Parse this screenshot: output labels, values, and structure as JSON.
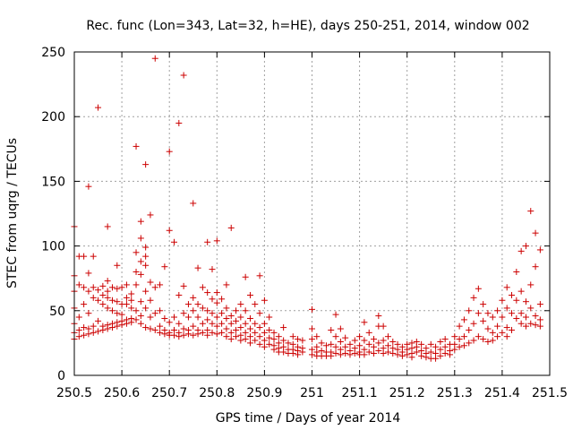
{
  "chart_data": {
    "type": "scatter",
    "title": "Rec. func (Lon=343, Lat=32, h=HE), days 250-251, 2014, window 002",
    "xlabel": "GPS time / Days of year 2014",
    "ylabel": "STEC from uqrg / TECUs",
    "xlim": [
      250.5,
      251.5
    ],
    "ylim": [
      0,
      250
    ],
    "x_ticks": [
      250.5,
      250.6,
      250.7,
      250.8,
      250.9,
      251,
      251.1,
      251.2,
      251.3,
      251.4,
      251.5
    ],
    "x_tick_labels": [
      "250.5",
      "250.6",
      "250.7",
      "250.8",
      "250.9",
      "251",
      "251.1",
      "251.2",
      "251.3",
      "251.4",
      "251.5"
    ],
    "y_ticks": [
      0,
      50,
      100,
      150,
      200,
      250
    ],
    "y_tick_labels": [
      "0",
      "50",
      "100",
      "150",
      "200",
      "250"
    ],
    "grid": true,
    "marker": "+",
    "color": "#cc0000",
    "points": [
      [
        250.5,
        115
      ],
      [
        250.5,
        77
      ],
      [
        250.5,
        65
      ],
      [
        250.5,
        52
      ],
      [
        250.5,
        40
      ],
      [
        250.5,
        33
      ],
      [
        250.5,
        28
      ],
      [
        250.51,
        92
      ],
      [
        250.51,
        70
      ],
      [
        250.51,
        45
      ],
      [
        250.51,
        35
      ],
      [
        250.51,
        30
      ],
      [
        250.52,
        92
      ],
      [
        250.52,
        68
      ],
      [
        250.52,
        55
      ],
      [
        250.52,
        37
      ],
      [
        250.52,
        31
      ],
      [
        250.53,
        146
      ],
      [
        250.53,
        79
      ],
      [
        250.53,
        65
      ],
      [
        250.53,
        48
      ],
      [
        250.53,
        36
      ],
      [
        250.53,
        32
      ],
      [
        250.54,
        92
      ],
      [
        250.54,
        68
      ],
      [
        250.54,
        60
      ],
      [
        250.54,
        38
      ],
      [
        250.54,
        33
      ],
      [
        250.55,
        207
      ],
      [
        250.55,
        66
      ],
      [
        250.55,
        58
      ],
      [
        250.55,
        42
      ],
      [
        250.55,
        34
      ],
      [
        250.56,
        69
      ],
      [
        250.56,
        62
      ],
      [
        250.56,
        55
      ],
      [
        250.56,
        38
      ],
      [
        250.56,
        35
      ],
      [
        250.57,
        115
      ],
      [
        250.57,
        73
      ],
      [
        250.57,
        65
      ],
      [
        250.57,
        60
      ],
      [
        250.57,
        52
      ],
      [
        250.57,
        39
      ],
      [
        250.57,
        36
      ],
      [
        250.58,
        68
      ],
      [
        250.58,
        58
      ],
      [
        250.58,
        50
      ],
      [
        250.58,
        40
      ],
      [
        250.58,
        37
      ],
      [
        250.59,
        85
      ],
      [
        250.59,
        67
      ],
      [
        250.59,
        57
      ],
      [
        250.59,
        48
      ],
      [
        250.59,
        41
      ],
      [
        250.59,
        38
      ],
      [
        250.6,
        68
      ],
      [
        250.6,
        55
      ],
      [
        250.6,
        47
      ],
      [
        250.6,
        42
      ],
      [
        250.6,
        39
      ],
      [
        250.61,
        70
      ],
      [
        250.61,
        60
      ],
      [
        250.61,
        55
      ],
      [
        250.61,
        43
      ],
      [
        250.61,
        40
      ],
      [
        250.62,
        63
      ],
      [
        250.62,
        58
      ],
      [
        250.62,
        52
      ],
      [
        250.62,
        44
      ],
      [
        250.62,
        41
      ],
      [
        250.63,
        177
      ],
      [
        250.63,
        95
      ],
      [
        250.63,
        80
      ],
      [
        250.63,
        70
      ],
      [
        250.63,
        50
      ],
      [
        250.63,
        43
      ],
      [
        250.64,
        119
      ],
      [
        250.64,
        106
      ],
      [
        250.64,
        88
      ],
      [
        250.64,
        78
      ],
      [
        250.64,
        57
      ],
      [
        250.64,
        46
      ],
      [
        250.64,
        40
      ],
      [
        250.65,
        163
      ],
      [
        250.65,
        99
      ],
      [
        250.65,
        92
      ],
      [
        250.65,
        85
      ],
      [
        250.65,
        65
      ],
      [
        250.65,
        52
      ],
      [
        250.65,
        37
      ],
      [
        250.66,
        124
      ],
      [
        250.66,
        72
      ],
      [
        250.66,
        58
      ],
      [
        250.66,
        45
      ],
      [
        250.66,
        36
      ],
      [
        250.67,
        245
      ],
      [
        250.67,
        68
      ],
      [
        250.67,
        48
      ],
      [
        250.67,
        35
      ],
      [
        250.68,
        70
      ],
      [
        250.68,
        50
      ],
      [
        250.68,
        38
      ],
      [
        250.68,
        33
      ],
      [
        250.69,
        84
      ],
      [
        250.69,
        44
      ],
      [
        250.69,
        35
      ],
      [
        250.69,
        32
      ],
      [
        250.7,
        173
      ],
      [
        250.7,
        112
      ],
      [
        250.7,
        41
      ],
      [
        250.7,
        33
      ],
      [
        250.7,
        31
      ],
      [
        250.71,
        103
      ],
      [
        250.71,
        45
      ],
      [
        250.71,
        35
      ],
      [
        250.71,
        31
      ],
      [
        250.72,
        195
      ],
      [
        250.72,
        62
      ],
      [
        250.72,
        40
      ],
      [
        250.72,
        33
      ],
      [
        250.72,
        30
      ],
      [
        250.73,
        232
      ],
      [
        250.73,
        69
      ],
      [
        250.73,
        48
      ],
      [
        250.73,
        36
      ],
      [
        250.73,
        31
      ],
      [
        250.74,
        55
      ],
      [
        250.74,
        45
      ],
      [
        250.74,
        35
      ],
      [
        250.74,
        32
      ],
      [
        250.75,
        133
      ],
      [
        250.75,
        60
      ],
      [
        250.75,
        50
      ],
      [
        250.75,
        38
      ],
      [
        250.75,
        31
      ],
      [
        250.76,
        83
      ],
      [
        250.76,
        55
      ],
      [
        250.76,
        45
      ],
      [
        250.76,
        35
      ],
      [
        250.76,
        32
      ],
      [
        250.77,
        68
      ],
      [
        250.77,
        52
      ],
      [
        250.77,
        40
      ],
      [
        250.77,
        33
      ],
      [
        250.78,
        103
      ],
      [
        250.78,
        64
      ],
      [
        250.78,
        50
      ],
      [
        250.78,
        43
      ],
      [
        250.78,
        35
      ],
      [
        250.78,
        31
      ],
      [
        250.79,
        82
      ],
      [
        250.79,
        59
      ],
      [
        250.79,
        48
      ],
      [
        250.79,
        40
      ],
      [
        250.79,
        33
      ],
      [
        250.8,
        104
      ],
      [
        250.8,
        64
      ],
      [
        250.8,
        56
      ],
      [
        250.8,
        45
      ],
      [
        250.8,
        38
      ],
      [
        250.8,
        32
      ],
      [
        250.81,
        59
      ],
      [
        250.81,
        48
      ],
      [
        250.81,
        40
      ],
      [
        250.81,
        33
      ],
      [
        250.82,
        70
      ],
      [
        250.82,
        52
      ],
      [
        250.82,
        44
      ],
      [
        250.82,
        36
      ],
      [
        250.82,
        30
      ],
      [
        250.83,
        114
      ],
      [
        250.83,
        46
      ],
      [
        250.83,
        40
      ],
      [
        250.83,
        33
      ],
      [
        250.83,
        28
      ],
      [
        250.84,
        50
      ],
      [
        250.84,
        42
      ],
      [
        250.84,
        35
      ],
      [
        250.84,
        30
      ],
      [
        250.85,
        55
      ],
      [
        250.85,
        45
      ],
      [
        250.85,
        37
      ],
      [
        250.85,
        31
      ],
      [
        250.85,
        27
      ],
      [
        250.86,
        76
      ],
      [
        250.86,
        50
      ],
      [
        250.86,
        40
      ],
      [
        250.86,
        33
      ],
      [
        250.86,
        28
      ],
      [
        250.87,
        62
      ],
      [
        250.87,
        44
      ],
      [
        250.87,
        36
      ],
      [
        250.87,
        30
      ],
      [
        250.87,
        25
      ],
      [
        250.88,
        55
      ],
      [
        250.88,
        40
      ],
      [
        250.88,
        33
      ],
      [
        250.88,
        27
      ],
      [
        250.89,
        77
      ],
      [
        250.89,
        48
      ],
      [
        250.89,
        37
      ],
      [
        250.89,
        30
      ],
      [
        250.89,
        24
      ],
      [
        250.9,
        58
      ],
      [
        250.9,
        40
      ],
      [
        250.9,
        33
      ],
      [
        250.9,
        27
      ],
      [
        250.9,
        22
      ],
      [
        250.91,
        45
      ],
      [
        250.91,
        35
      ],
      [
        250.91,
        29
      ],
      [
        250.91,
        24
      ],
      [
        250.92,
        33
      ],
      [
        250.92,
        28
      ],
      [
        250.92,
        23
      ],
      [
        250.92,
        20
      ],
      [
        250.93,
        30
      ],
      [
        250.93,
        25
      ],
      [
        250.93,
        21
      ],
      [
        250.93,
        18
      ],
      [
        250.94,
        37
      ],
      [
        250.94,
        27
      ],
      [
        250.94,
        22
      ],
      [
        250.94,
        18
      ],
      [
        250.95,
        25
      ],
      [
        250.95,
        20
      ],
      [
        250.95,
        17
      ],
      [
        250.96,
        30
      ],
      [
        250.96,
        24
      ],
      [
        250.96,
        20
      ],
      [
        250.96,
        17
      ],
      [
        250.97,
        28
      ],
      [
        250.97,
        22
      ],
      [
        250.97,
        19
      ],
      [
        250.97,
        16
      ],
      [
        250.98,
        27
      ],
      [
        250.98,
        21
      ],
      [
        250.98,
        18
      ],
      [
        251.0,
        36
      ],
      [
        251.0,
        51
      ],
      [
        251.0,
        28
      ],
      [
        251.0,
        20
      ],
      [
        251.0,
        16
      ],
      [
        251.01,
        30
      ],
      [
        251.01,
        22
      ],
      [
        251.01,
        18
      ],
      [
        251.01,
        15
      ],
      [
        251.02,
        25
      ],
      [
        251.02,
        19
      ],
      [
        251.02,
        15
      ],
      [
        251.03,
        23
      ],
      [
        251.03,
        18
      ],
      [
        251.03,
        15
      ],
      [
        251.04,
        35
      ],
      [
        251.04,
        24
      ],
      [
        251.04,
        18
      ],
      [
        251.04,
        15
      ],
      [
        251.05,
        47
      ],
      [
        251.05,
        30
      ],
      [
        251.05,
        22
      ],
      [
        251.05,
        17
      ],
      [
        251.06,
        36
      ],
      [
        251.06,
        26
      ],
      [
        251.06,
        20
      ],
      [
        251.06,
        16
      ],
      [
        251.07,
        29
      ],
      [
        251.07,
        22
      ],
      [
        251.07,
        17
      ],
      [
        251.08,
        24
      ],
      [
        251.08,
        19
      ],
      [
        251.08,
        16
      ],
      [
        251.09,
        27
      ],
      [
        251.09,
        21
      ],
      [
        251.09,
        17
      ],
      [
        251.1,
        30
      ],
      [
        251.1,
        23
      ],
      [
        251.1,
        18
      ],
      [
        251.1,
        16
      ],
      [
        251.11,
        41
      ],
      [
        251.11,
        27
      ],
      [
        251.11,
        20
      ],
      [
        251.11,
        16
      ],
      [
        251.12,
        33
      ],
      [
        251.12,
        24
      ],
      [
        251.12,
        18
      ],
      [
        251.13,
        28
      ],
      [
        251.13,
        22
      ],
      [
        251.13,
        17
      ],
      [
        251.14,
        46
      ],
      [
        251.14,
        38
      ],
      [
        251.14,
        25
      ],
      [
        251.14,
        19
      ],
      [
        251.15,
        38
      ],
      [
        251.15,
        27
      ],
      [
        251.15,
        21
      ],
      [
        251.15,
        17
      ],
      [
        251.16,
        30
      ],
      [
        251.16,
        23
      ],
      [
        251.16,
        18
      ],
      [
        251.17,
        26
      ],
      [
        251.17,
        21
      ],
      [
        251.17,
        17
      ],
      [
        251.18,
        24
      ],
      [
        251.18,
        20
      ],
      [
        251.18,
        16
      ],
      [
        251.19,
        22
      ],
      [
        251.19,
        18
      ],
      [
        251.19,
        15
      ],
      [
        251.2,
        24
      ],
      [
        251.2,
        20
      ],
      [
        251.2,
        16
      ],
      [
        251.21,
        25
      ],
      [
        251.21,
        21
      ],
      [
        251.21,
        17
      ],
      [
        251.21,
        14
      ],
      [
        251.22,
        26
      ],
      [
        251.22,
        22
      ],
      [
        251.22,
        18
      ],
      [
        251.23,
        24
      ],
      [
        251.23,
        19
      ],
      [
        251.23,
        15
      ],
      [
        251.24,
        21
      ],
      [
        251.24,
        17
      ],
      [
        251.24,
        14
      ],
      [
        251.25,
        24
      ],
      [
        251.25,
        18
      ],
      [
        251.25,
        13
      ],
      [
        251.26,
        22
      ],
      [
        251.26,
        17
      ],
      [
        251.26,
        13
      ],
      [
        251.27,
        26
      ],
      [
        251.27,
        20
      ],
      [
        251.27,
        15
      ],
      [
        251.28,
        28
      ],
      [
        251.28,
        22
      ],
      [
        251.28,
        17
      ],
      [
        251.29,
        24
      ],
      [
        251.29,
        19
      ],
      [
        251.29,
        16
      ],
      [
        251.3,
        30
      ],
      [
        251.3,
        24
      ],
      [
        251.3,
        20
      ],
      [
        251.31,
        38
      ],
      [
        251.31,
        28
      ],
      [
        251.31,
        22
      ],
      [
        251.32,
        43
      ],
      [
        251.32,
        30
      ],
      [
        251.32,
        23
      ],
      [
        251.33,
        50
      ],
      [
        251.33,
        35
      ],
      [
        251.33,
        25
      ],
      [
        251.34,
        60
      ],
      [
        251.34,
        40
      ],
      [
        251.34,
        27
      ],
      [
        251.35,
        67
      ],
      [
        251.35,
        48
      ],
      [
        251.35,
        30
      ],
      [
        251.36,
        55
      ],
      [
        251.36,
        42
      ],
      [
        251.36,
        28
      ],
      [
        251.37,
        48
      ],
      [
        251.37,
        36
      ],
      [
        251.37,
        26
      ],
      [
        251.38,
        45
      ],
      [
        251.38,
        33
      ],
      [
        251.38,
        27
      ],
      [
        251.39,
        50
      ],
      [
        251.39,
        38
      ],
      [
        251.39,
        30
      ],
      [
        251.4,
        58
      ],
      [
        251.4,
        45
      ],
      [
        251.4,
        33
      ],
      [
        251.41,
        68
      ],
      [
        251.41,
        52
      ],
      [
        251.41,
        37
      ],
      [
        251.41,
        30
      ],
      [
        251.42,
        62
      ],
      [
        251.42,
        48
      ],
      [
        251.42,
        35
      ],
      [
        251.43,
        80
      ],
      [
        251.43,
        58
      ],
      [
        251.43,
        44
      ],
      [
        251.44,
        96
      ],
      [
        251.44,
        65
      ],
      [
        251.44,
        48
      ],
      [
        251.44,
        40
      ],
      [
        251.45,
        100
      ],
      [
        251.45,
        57
      ],
      [
        251.45,
        45
      ],
      [
        251.45,
        38
      ],
      [
        251.46,
        127
      ],
      [
        251.46,
        70
      ],
      [
        251.46,
        52
      ],
      [
        251.46,
        40
      ],
      [
        251.47,
        110
      ],
      [
        251.47,
        84
      ],
      [
        251.47,
        46
      ],
      [
        251.47,
        39
      ],
      [
        251.48,
        97
      ],
      [
        251.48,
        55
      ],
      [
        251.48,
        43
      ],
      [
        251.48,
        38
      ]
    ]
  }
}
